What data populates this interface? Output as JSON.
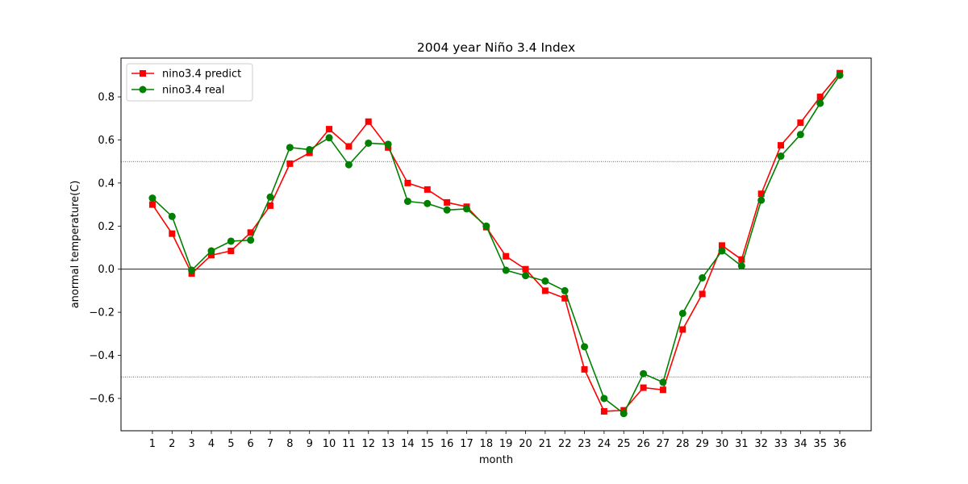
{
  "chart_data": {
    "type": "line",
    "title": "2004 year Niño 3.4 Index",
    "xlabel": "month",
    "ylabel": "anormal temperature(C)",
    "x": [
      1,
      2,
      3,
      4,
      5,
      6,
      7,
      8,
      9,
      10,
      11,
      12,
      13,
      14,
      15,
      16,
      17,
      18,
      19,
      20,
      21,
      22,
      23,
      24,
      25,
      26,
      27,
      28,
      29,
      30,
      31,
      32,
      33,
      34,
      35,
      36
    ],
    "x_tick_labels": [
      "1",
      "2",
      "3",
      "4",
      "5",
      "6",
      "7",
      "8",
      "9",
      "10",
      "11",
      "12",
      "13",
      "14",
      "15",
      "16",
      "17",
      "18",
      "19",
      "20",
      "21",
      "22",
      "23",
      "24",
      "25",
      "26",
      "27",
      "28",
      "29",
      "30",
      "31",
      "32",
      "33",
      "34",
      "35",
      "36"
    ],
    "xlim": [
      -0.6,
      37.6
    ],
    "ylim": [
      -0.75,
      0.98
    ],
    "y_ticks": [
      -0.6,
      -0.4,
      -0.2,
      0.0,
      0.2,
      0.4,
      0.6,
      0.8
    ],
    "y_tick_labels": [
      "−0.6",
      "−0.4",
      "−0.2",
      "0.0",
      "0.2",
      "0.4",
      "0.6",
      "0.8"
    ],
    "reference_lines": [
      {
        "y": 0.5,
        "style": "dotted"
      },
      {
        "y": 0.0,
        "style": "solid"
      },
      {
        "y": -0.5,
        "style": "dotted"
      }
    ],
    "grid": false,
    "legend_position": "top-left",
    "series": [
      {
        "name": "nino3.4 predict",
        "color": "#ff0000",
        "marker": "square",
        "values": [
          0.3,
          0.165,
          -0.02,
          0.065,
          0.085,
          0.17,
          0.295,
          0.49,
          0.54,
          0.65,
          0.57,
          0.685,
          0.565,
          0.4,
          0.37,
          0.31,
          0.29,
          0.195,
          0.06,
          0.0,
          -0.1,
          -0.135,
          -0.465,
          -0.66,
          -0.655,
          -0.55,
          -0.56,
          -0.28,
          -0.115,
          0.11,
          0.045,
          0.35,
          0.575,
          0.68,
          0.8,
          0.91
        ]
      },
      {
        "name": "nino3.4 real",
        "color": "#008000",
        "marker": "circle",
        "values": [
          0.33,
          0.245,
          -0.005,
          0.085,
          0.13,
          0.135,
          0.335,
          0.565,
          0.555,
          0.61,
          0.485,
          0.585,
          0.58,
          0.315,
          0.305,
          0.275,
          0.28,
          0.2,
          -0.005,
          -0.03,
          -0.055,
          -0.1,
          -0.36,
          -0.6,
          -0.67,
          -0.485,
          -0.525,
          -0.205,
          -0.04,
          0.085,
          0.015,
          0.32,
          0.525,
          0.625,
          0.77,
          0.9
        ]
      }
    ]
  }
}
